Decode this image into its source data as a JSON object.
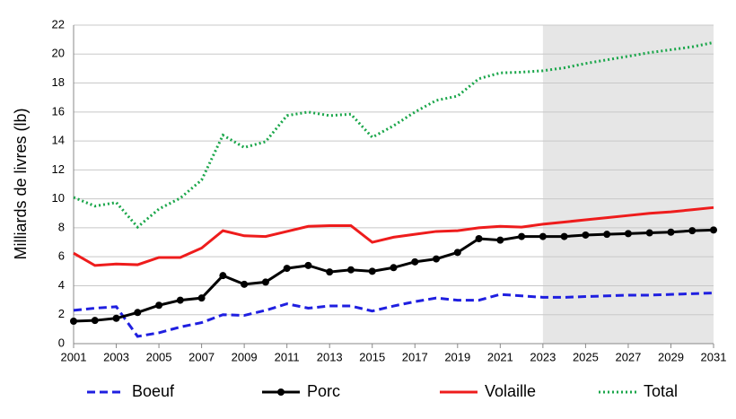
{
  "chart_data": {
    "type": "line",
    "ylabel": "Milliards de livres (lb)",
    "x": [
      2001,
      2002,
      2003,
      2004,
      2005,
      2006,
      2007,
      2008,
      2009,
      2010,
      2011,
      2012,
      2013,
      2014,
      2015,
      2016,
      2017,
      2018,
      2019,
      2020,
      2021,
      2022,
      2023,
      2024,
      2025,
      2026,
      2027,
      2028,
      2029,
      2030,
      2031
    ],
    "series": [
      {
        "name": "Boeuf",
        "color": "#1f1fe0",
        "style": "dashed",
        "values": [
          2.3,
          2.45,
          2.55,
          0.5,
          0.75,
          1.15,
          1.45,
          2.0,
          1.95,
          2.3,
          2.75,
          2.45,
          2.6,
          2.6,
          2.25,
          2.6,
          2.9,
          3.15,
          3.0,
          3.0,
          3.4,
          3.3,
          3.2,
          3.2,
          3.25,
          3.3,
          3.35,
          3.35,
          3.4,
          3.45,
          3.5
        ]
      },
      {
        "name": "Porc",
        "color": "#000000",
        "style": "solid",
        "marker": "circle",
        "values": [
          1.55,
          1.6,
          1.75,
          2.15,
          2.65,
          3.0,
          3.15,
          4.7,
          4.1,
          4.25,
          5.2,
          5.4,
          4.95,
          5.1,
          5.0,
          5.25,
          5.65,
          5.85,
          6.3,
          7.25,
          7.15,
          7.4,
          7.4,
          7.4,
          7.5,
          7.55,
          7.6,
          7.65,
          7.7,
          7.8,
          7.85
        ]
      },
      {
        "name": "Volaille",
        "color": "#ee1c1c",
        "style": "solid",
        "values": [
          6.25,
          5.4,
          5.5,
          5.45,
          5.95,
          5.95,
          6.6,
          7.8,
          7.45,
          7.4,
          7.75,
          8.1,
          8.15,
          8.15,
          7.0,
          7.35,
          7.55,
          7.75,
          7.8,
          8.0,
          8.1,
          8.05,
          8.25,
          8.4,
          8.55,
          8.7,
          8.85,
          9.0,
          9.1,
          9.25,
          9.4
        ]
      },
      {
        "name": "Total",
        "color": "#1aa64a",
        "style": "dotted",
        "values": [
          10.1,
          9.5,
          9.75,
          8.05,
          9.3,
          10.05,
          11.3,
          14.4,
          13.55,
          13.95,
          15.75,
          16.0,
          15.75,
          15.85,
          14.25,
          15.05,
          16.0,
          16.8,
          17.1,
          18.3,
          18.7,
          18.75,
          18.85,
          19.05,
          19.35,
          19.6,
          19.85,
          20.1,
          20.3,
          20.5,
          20.8
        ]
      }
    ],
    "xlim": [
      2001,
      2031
    ],
    "xticks": [
      2001,
      2003,
      2005,
      2007,
      2009,
      2011,
      2013,
      2015,
      2017,
      2019,
      2021,
      2023,
      2025,
      2027,
      2029,
      2031
    ],
    "ylim": [
      0,
      22
    ],
    "yticks": [
      0,
      2,
      4,
      6,
      8,
      10,
      12,
      14,
      16,
      18,
      20,
      22
    ],
    "grid": true,
    "shaded_region": {
      "x": [
        2023,
        2031
      ],
      "color": "#e6e6e6"
    },
    "legend": "bottom"
  }
}
